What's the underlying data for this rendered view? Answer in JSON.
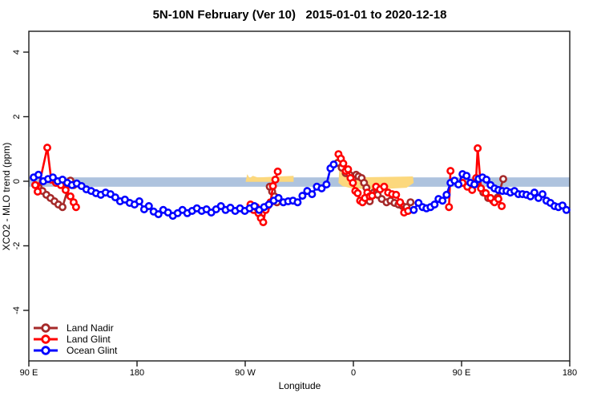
{
  "title": "5N-10N February (Ver 10)   2015-01-01 to 2020-12-18",
  "chart_data": {
    "type": "line",
    "title": "5N-10N February (Ver 10)   2015-01-01 to 2020-12-18",
    "xlabel": "Longitude",
    "ylabel": "XCO2 - MLO trend (ppm)",
    "x_axis": {
      "note": "longitude axis runs eastward from 90E wrapping around the globe; positions stored as degrees east of 90E (0-450)",
      "range_deg": [
        0,
        450
      ],
      "ticks_deg": [
        0,
        90,
        180,
        270,
        360,
        450
      ],
      "tick_labels": [
        "90 E",
        "180",
        "90 W",
        "0",
        "90 E",
        "180"
      ]
    },
    "y_axis": {
      "ticks": [
        4,
        2,
        0,
        -2,
        -4
      ],
      "range": [
        -5.5,
        4.6
      ],
      "grid": false
    },
    "zero_band": {
      "color": "#aec3de",
      "y_top": 0.12,
      "y_bottom": -0.17
    },
    "highlight_regions": [
      {
        "color": "#fcd87d",
        "polygon": [
          [
            180.4,
            0.0
          ],
          [
            181.7,
            0.22
          ],
          [
            183.7,
            0.1
          ],
          [
            186.4,
            0.17
          ],
          [
            190.4,
            0.12
          ],
          [
            220.3,
            0.17
          ],
          [
            220.3,
            -0.02
          ],
          [
            180.4,
            -0.02
          ]
        ]
      },
      {
        "color": "#fcd87d",
        "polygon": [
          [
            257.6,
            -0.05
          ],
          [
            258.2,
            0.32
          ],
          [
            261.6,
            0.3
          ],
          [
            264.9,
            0.15
          ],
          [
            268.9,
            0.12
          ],
          [
            319.5,
            0.15
          ],
          [
            320.2,
            -0.05
          ],
          [
            314.2,
            -0.2
          ],
          [
            288.9,
            -0.25
          ],
          [
            268.9,
            -0.22
          ],
          [
            260.9,
            -0.15
          ]
        ]
      }
    ],
    "legend_position": "bottom-left",
    "series": [
      {
        "name": "Land Nadir",
        "color": "#a52a2a",
        "segments": [
          [
            [
              8,
              -0.17
            ],
            [
              11.3,
              -0.3
            ],
            [
              14.6,
              -0.42
            ],
            [
              18,
              -0.52
            ],
            [
              21.3,
              -0.62
            ],
            [
              24.6,
              -0.72
            ],
            [
              28,
              -0.8
            ],
            [
              34.6,
              0.02
            ],
            [
              37.3,
              -0.12
            ]
          ],
          [
            [
              200.4,
              -0.17
            ],
            [
              202.4,
              -0.32
            ],
            [
              204.4,
              -0.47
            ],
            [
              206.4,
              -0.65
            ]
          ],
          [
            [
              256.9,
              0.57
            ],
            [
              260.3,
              0.42
            ],
            [
              263.6,
              0.25
            ],
            [
              266.9,
              0.2
            ],
            [
              269.6,
              0.1
            ],
            [
              272.3,
              0.2
            ],
            [
              274.3,
              0.15
            ],
            [
              276.9,
              0.1
            ],
            [
              278.9,
              -0.05
            ],
            [
              280.9,
              -0.2
            ],
            [
              283.6,
              -0.62
            ],
            [
              286.9,
              -0.35
            ],
            [
              290.2,
              -0.42
            ],
            [
              293.6,
              -0.55
            ],
            [
              297.6,
              -0.65
            ],
            [
              300.9,
              -0.6
            ],
            [
              304.2,
              -0.67
            ],
            [
              307.5,
              -0.72
            ],
            [
              310.9,
              -0.77
            ],
            [
              314.2,
              -0.8
            ],
            [
              317.5,
              -0.65
            ]
          ],
          [
            [
              367.4,
              -0.12
            ],
            [
              372.8,
              -0.02
            ],
            [
              378.1,
              -0.35
            ],
            [
              382.1,
              -0.52
            ],
            [
              386.1,
              -0.6
            ],
            [
              390.1,
              -0.5
            ],
            [
              394.7,
              0.07
            ]
          ]
        ]
      },
      {
        "name": "Land Glint",
        "color": "#ff0000",
        "segments": [
          [
            [
              5.3,
              -0.12
            ],
            [
              7.3,
              -0.32
            ],
            [
              15.3,
              1.04
            ],
            [
              18.6,
              0.05
            ],
            [
              22.6,
              -0.05
            ],
            [
              26.6,
              -0.12
            ],
            [
              30.6,
              -0.27
            ],
            [
              34.6,
              -0.47
            ],
            [
              37.3,
              -0.65
            ],
            [
              39.3,
              -0.8
            ]
          ],
          [
            [
              184.4,
              -0.72
            ],
            [
              187,
              -0.89
            ],
            [
              189,
              -0.8
            ],
            [
              191,
              -0.99
            ],
            [
              193,
              -1.14
            ],
            [
              195,
              -1.27
            ],
            [
              197,
              -0.89
            ],
            [
              199,
              -0.75
            ],
            [
              201.1,
              -0.65
            ],
            [
              203.1,
              -0.15
            ],
            [
              205.1,
              0.05
            ],
            [
              207.1,
              0.3
            ]
          ],
          [
            [
              257.6,
              0.84
            ],
            [
              259.6,
              0.7
            ],
            [
              261.6,
              0.55
            ],
            [
              263.6,
              0.32
            ],
            [
              265.6,
              0.37
            ],
            [
              267.6,
              0.1
            ],
            [
              269.6,
              -0.05
            ],
            [
              271.6,
              -0.3
            ],
            [
              273.6,
              -0.37
            ],
            [
              275.6,
              -0.6
            ],
            [
              277.6,
              -0.65
            ],
            [
              279.6,
              -0.52
            ],
            [
              281.6,
              -0.35
            ],
            [
              283.6,
              -0.47
            ],
            [
              285.6,
              -0.45
            ],
            [
              288.9,
              -0.17
            ],
            [
              292.2,
              -0.25
            ],
            [
              295.6,
              -0.17
            ],
            [
              298.9,
              -0.35
            ],
            [
              302.2,
              -0.4
            ],
            [
              305.5,
              -0.42
            ],
            [
              308.9,
              -0.65
            ],
            [
              312.2,
              -0.97
            ],
            [
              315.5,
              -0.92
            ]
          ],
          [
            [
              349.5,
              -0.8
            ],
            [
              350.8,
              0.32
            ]
          ],
          [
            [
              360.8,
              -0.05
            ],
            [
              364.8,
              -0.17
            ],
            [
              368.8,
              -0.27
            ],
            [
              372.1,
              0.1
            ],
            [
              373.4,
              1.02
            ],
            [
              376.1,
              -0.22
            ],
            [
              380.1,
              -0.37
            ],
            [
              384.1,
              -0.52
            ],
            [
              387.4,
              -0.65
            ],
            [
              390.7,
              -0.55
            ],
            [
              393.4,
              -0.77
            ]
          ]
        ]
      },
      {
        "name": "Ocean Glint",
        "color": "#0000ff",
        "segments": [
          [
            [
              4,
              0.12
            ],
            [
              8,
              0.2
            ],
            [
              12,
              0.0
            ],
            [
              16,
              0.07
            ],
            [
              20,
              0.12
            ],
            [
              24,
              0.0
            ],
            [
              28,
              0.05
            ],
            [
              32,
              -0.05
            ],
            [
              35.9,
              -0.12
            ],
            [
              39.9,
              -0.07
            ],
            [
              43.9,
              -0.15
            ],
            [
              47.9,
              -0.25
            ],
            [
              51.9,
              -0.3
            ],
            [
              55.9,
              -0.37
            ],
            [
              59.9,
              -0.42
            ],
            [
              63.9,
              -0.35
            ],
            [
              67.9,
              -0.4
            ],
            [
              71.9,
              -0.5
            ],
            [
              75.9,
              -0.62
            ],
            [
              79.9,
              -0.57
            ],
            [
              83.9,
              -0.67
            ],
            [
              87.9,
              -0.72
            ],
            [
              91.9,
              -0.62
            ],
            [
              95.9,
              -0.87
            ],
            [
              99.9,
              -0.77
            ],
            [
              103.8,
              -0.94
            ],
            [
              107.8,
              -1.02
            ],
            [
              111.8,
              -0.89
            ],
            [
              115.8,
              -0.97
            ],
            [
              119.8,
              -1.07
            ],
            [
              123.8,
              -0.99
            ],
            [
              127.8,
              -0.89
            ],
            [
              131.8,
              -0.99
            ],
            [
              135.8,
              -0.92
            ],
            [
              139.8,
              -0.84
            ],
            [
              143.8,
              -0.92
            ],
            [
              147.8,
              -0.87
            ],
            [
              151.8,
              -0.97
            ],
            [
              155.8,
              -0.87
            ],
            [
              159.8,
              -0.77
            ],
            [
              163.7,
              -0.89
            ],
            [
              167.7,
              -0.82
            ],
            [
              171.7,
              -0.92
            ],
            [
              175.7,
              -0.84
            ],
            [
              179.7,
              -0.92
            ],
            [
              183.7,
              -0.84
            ],
            [
              187.7,
              -0.77
            ],
            [
              191.7,
              -0.89
            ],
            [
              195.7,
              -0.8
            ],
            [
              199.7,
              -0.72
            ],
            [
              203.7,
              -0.6
            ],
            [
              207.7,
              -0.52
            ],
            [
              211.7,
              -0.65
            ],
            [
              215.7,
              -0.62
            ],
            [
              219.7,
              -0.6
            ],
            [
              223.6,
              -0.65
            ],
            [
              227.6,
              -0.45
            ],
            [
              231.6,
              -0.3
            ],
            [
              235.6,
              -0.4
            ],
            [
              239.6,
              -0.17
            ],
            [
              243.6,
              -0.22
            ],
            [
              247.6,
              -0.1
            ],
            [
              250.9,
              0.4
            ],
            [
              253.6,
              0.52
            ]
          ],
          [
            [
              320.2,
              -0.89
            ],
            [
              324.2,
              -0.67
            ],
            [
              327.5,
              -0.8
            ],
            [
              330.8,
              -0.84
            ],
            [
              334.2,
              -0.8
            ],
            [
              337.5,
              -0.72
            ],
            [
              340.8,
              -0.55
            ],
            [
              344.1,
              -0.6
            ],
            [
              347.5,
              -0.42
            ],
            [
              350.8,
              -0.05
            ],
            [
              354.1,
              0.02
            ],
            [
              357.4,
              -0.1
            ],
            [
              360.8,
              0.22
            ],
            [
              364.1,
              0.17
            ],
            [
              367.4,
              -0.05
            ],
            [
              370.7,
              -0.1
            ],
            [
              374.1,
              0.07
            ],
            [
              377.4,
              0.12
            ],
            [
              380.7,
              0.05
            ],
            [
              384.1,
              -0.12
            ],
            [
              387.4,
              -0.22
            ],
            [
              390.7,
              -0.27
            ],
            [
              394,
              -0.3
            ],
            [
              397.4,
              -0.3
            ],
            [
              400.7,
              -0.35
            ],
            [
              404,
              -0.3
            ],
            [
              407.3,
              -0.4
            ],
            [
              410.7,
              -0.4
            ],
            [
              414,
              -0.42
            ],
            [
              417.3,
              -0.47
            ],
            [
              420.6,
              -0.35
            ],
            [
              424,
              -0.52
            ],
            [
              427.3,
              -0.4
            ],
            [
              430.6,
              -0.6
            ],
            [
              433.9,
              -0.67
            ],
            [
              437.3,
              -0.77
            ],
            [
              440.6,
              -0.8
            ],
            [
              443.9,
              -0.75
            ],
            [
              447.2,
              -0.89
            ]
          ]
        ]
      }
    ]
  }
}
